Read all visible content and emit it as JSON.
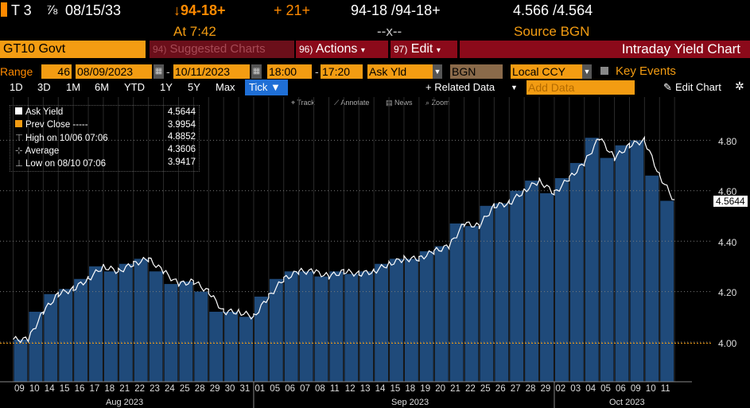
{
  "quote": {
    "ticker": "T 3",
    "coupon_frac": "⅞",
    "maturity": "08/15/33",
    "price_change": "↓94-18+",
    "change": "+ 21+",
    "bid_ask": "94-18 /94-18+",
    "yields": "4.566 /4.564",
    "time_label": "At 7:42",
    "dash_x": "--x--",
    "source": "Source BGN"
  },
  "toolbar": {
    "security": "GT10 Govt",
    "suggested_num": "94)",
    "suggested": "Suggested Charts",
    "actions_num": "96)",
    "actions": "Actions",
    "edit_num": "97)",
    "edit": "Edit",
    "title": "Intraday Yield Chart"
  },
  "range_bar": {
    "range_label": "Range",
    "range_value": "46",
    "start_date": "08/09/2023",
    "end_date": "10/11/2023",
    "start_time": "18:00",
    "end_time": "17:20",
    "field": "Ask Yld",
    "source": "BGN",
    "currency": "Local CCY",
    "key_events": "Key Events"
  },
  "periods": [
    "1D",
    "3D",
    "1M",
    "6M",
    "YTD",
    "1Y",
    "5Y",
    "Max"
  ],
  "tick_button": "Tick ▼",
  "related_data": "+ Related Data",
  "add_data_placeholder": "Add Data",
  "edit_chart": "Edit Chart",
  "tools": [
    "Track",
    "Annotate",
    "News",
    "Zoom"
  ],
  "legend": [
    {
      "label": "Ask Yield",
      "value": "4.5644"
    },
    {
      "label": "Prev Close -----",
      "value": "3.9954"
    },
    {
      "label": "High on 10/06 07:06",
      "value": "4.8852"
    },
    {
      "label": "Average",
      "value": "4.3606"
    },
    {
      "label": "Low on 08/10 07:06",
      "value": "3.9417"
    }
  ],
  "colors": {
    "amber": "#f39c12",
    "orange": "#ff8a00",
    "bar_blue": "#1f4a7a",
    "title_red": "#8b0a1a",
    "button_blue": "#1f6fd6"
  },
  "chart_data": {
    "type": "area",
    "title": "Intraday Yield Chart",
    "series_name": "Ask Yield",
    "last_value_label": "4.5644",
    "prev_close": 3.9954,
    "ylim": [
      3.88,
      4.92
    ],
    "yticks": [
      4.0,
      4.2,
      4.4,
      4.6,
      4.8
    ],
    "ytick_labels": [
      "4.00",
      "4.20",
      "4.40",
      "4.60",
      "4.80"
    ],
    "x": [
      "09",
      "10",
      "14",
      "15",
      "16",
      "17",
      "18",
      "21",
      "22",
      "23",
      "24",
      "25",
      "28",
      "29",
      "30",
      "31",
      "01",
      "05",
      "06",
      "07",
      "08",
      "11",
      "12",
      "13",
      "14",
      "15",
      "18",
      "19",
      "20",
      "21",
      "22",
      "25",
      "26",
      "27",
      "28",
      "29",
      "02",
      "03",
      "04",
      "05",
      "06",
      "09",
      "10",
      "11"
    ],
    "values": [
      4.01,
      4.12,
      4.19,
      4.21,
      4.25,
      4.3,
      4.28,
      4.31,
      4.33,
      4.28,
      4.23,
      4.24,
      4.2,
      4.12,
      4.12,
      4.1,
      4.18,
      4.25,
      4.28,
      4.28,
      4.26,
      4.28,
      4.27,
      4.28,
      4.31,
      4.33,
      4.33,
      4.36,
      4.38,
      4.47,
      4.46,
      4.54,
      4.55,
      4.6,
      4.64,
      4.59,
      4.65,
      4.71,
      4.81,
      4.73,
      4.78,
      4.8,
      4.66,
      4.56
    ],
    "month_labels": [
      "Aug 2023",
      "Sep 2023",
      "Oct 2023"
    ]
  }
}
